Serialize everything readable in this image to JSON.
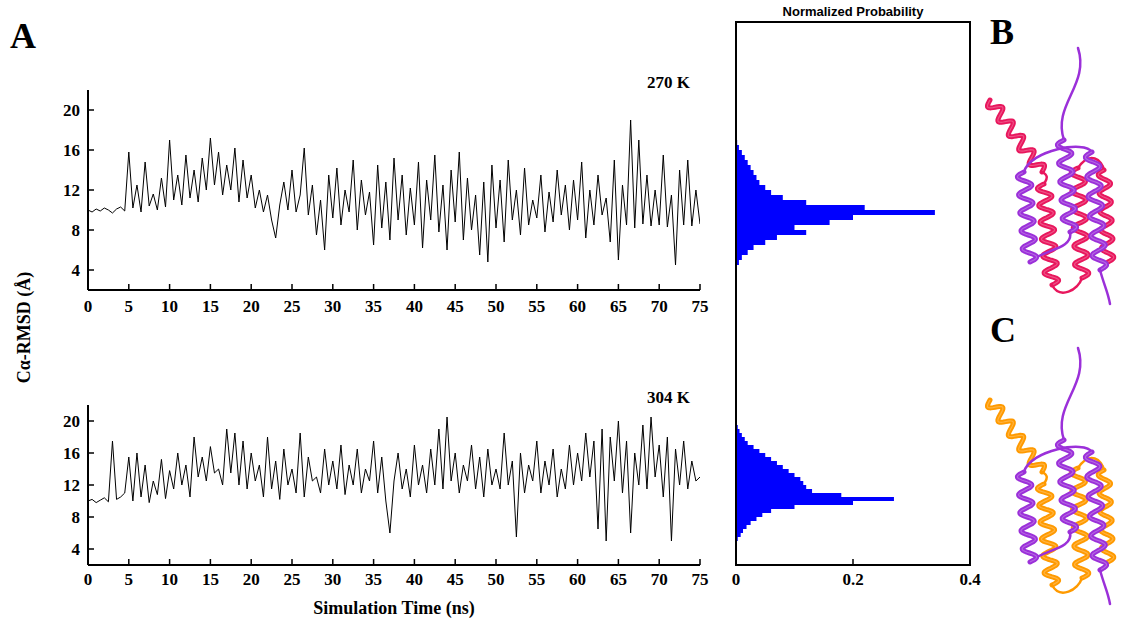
{
  "figure": {
    "panel_letters": [
      "A",
      "B",
      "C"
    ],
    "y_axis_title": "Cα-RMSD (Å)",
    "x_axis_title": "Simulation Time (ns)",
    "histogram_title": "Normalized Probability"
  },
  "chart_data": [
    {
      "type": "line",
      "title": "270 K",
      "color": "#000000",
      "x": [
        0,
        0.5,
        1,
        1.5,
        2,
        2.5,
        3,
        3.5,
        4,
        4.5,
        5,
        5.5,
        6,
        6.5,
        7,
        7.5,
        8,
        8.5,
        9,
        9.5,
        10,
        10.5,
        11,
        11.5,
        12,
        12.5,
        13,
        13.5,
        14,
        14.5,
        15,
        15.5,
        16,
        16.5,
        17,
        17.5,
        18,
        18.5,
        19,
        19.5,
        20,
        20.5,
        21,
        21.5,
        22,
        22.5,
        23,
        23.5,
        24,
        24.5,
        25,
        25.5,
        26,
        26.5,
        27,
        27.5,
        28,
        28.5,
        29,
        29.5,
        30,
        30.5,
        31,
        31.5,
        32,
        32.5,
        33,
        33.5,
        34,
        34.5,
        35,
        35.5,
        36,
        36.5,
        37,
        37.5,
        38,
        38.5,
        39,
        39.5,
        40,
        40.5,
        41,
        41.5,
        42,
        42.5,
        43,
        43.5,
        44,
        44.5,
        45,
        45.5,
        46,
        46.5,
        47,
        47.5,
        48,
        48.5,
        49,
        49.5,
        50,
        50.5,
        51,
        51.5,
        52,
        52.5,
        53,
        53.5,
        54,
        54.5,
        55,
        55.5,
        56,
        56.5,
        57,
        57.5,
        58,
        58.5,
        59,
        59.5,
        60,
        60.5,
        61,
        61.5,
        62,
        62.5,
        63,
        63.5,
        64,
        64.5,
        65,
        65.5,
        66,
        66.5,
        67,
        67.5,
        68,
        68.5,
        69,
        69.5,
        70,
        70.5,
        71,
        71.5,
        72,
        72.5,
        73,
        73.5,
        74,
        74.5,
        75
      ],
      "values": [
        10.0,
        9.8,
        10.1,
        9.9,
        10.2,
        10.0,
        9.7,
        10.1,
        10.3,
        9.9,
        15.8,
        10.2,
        12.5,
        9.8,
        14.8,
        10.4,
        11.6,
        10.0,
        13.2,
        10.3,
        17.0,
        11.0,
        13.5,
        10.5,
        15.5,
        11.2,
        14.0,
        10.8,
        15.2,
        12.0,
        17.2,
        12.5,
        15.8,
        11.5,
        14.5,
        12.0,
        16.2,
        10.8,
        15.0,
        11.2,
        13.5,
        10.2,
        12.0,
        9.8,
        11.5,
        9.0,
        7.2,
        10.5,
        12.8,
        10.0,
        14.0,
        9.8,
        11.5,
        16.2,
        9.5,
        12.5,
        7.5,
        11.0,
        6.0,
        13.5,
        9.2,
        14.2,
        8.5,
        12.0,
        9.8,
        15.0,
        8.0,
        13.0,
        9.5,
        11.8,
        6.5,
        14.5,
        8.2,
        12.8,
        7.0,
        15.2,
        9.0,
        13.5,
        7.5,
        12.2,
        8.5,
        14.8,
        6.2,
        13.0,
        9.0,
        15.5,
        7.8,
        12.5,
        6.0,
        14.0,
        8.8,
        15.8,
        7.0,
        13.2,
        8.0,
        11.5,
        5.5,
        12.8,
        4.8,
        14.5,
        8.2,
        13.0,
        6.8,
        15.0,
        9.0,
        12.0,
        7.5,
        14.2,
        8.5,
        11.0,
        9.2,
        13.5,
        7.8,
        11.8,
        8.8,
        14.0,
        9.5,
        12.5,
        8.0,
        13.0,
        9.0,
        14.8,
        7.2,
        12.0,
        8.5,
        13.5,
        9.5,
        11.2,
        6.8,
        15.0,
        5.0,
        12.5,
        8.5,
        19.0,
        8.2,
        17.0,
        8.6,
        13.5,
        8.4,
        12.0,
        8.5,
        15.5,
        8.3,
        11.5,
        4.5,
        14.0,
        8.5,
        15.0,
        8.4,
        12.0,
        8.6
      ],
      "xlim": [
        0,
        75
      ],
      "xticks": [
        0,
        5,
        10,
        15,
        20,
        25,
        30,
        35,
        40,
        45,
        50,
        55,
        60,
        65,
        70,
        75
      ],
      "ylim": [
        2,
        22
      ],
      "yticks": [
        4,
        8,
        12,
        16,
        20
      ]
    },
    {
      "type": "histogram",
      "orientation": "horizontal",
      "color": "#0000ff",
      "bins": [
        4,
        4.5,
        5,
        5.5,
        6,
        6.5,
        7,
        7.5,
        8,
        8.5,
        9,
        9.5,
        10,
        10.5,
        11,
        11.5,
        12,
        12.5,
        13,
        13.5,
        14,
        14.5,
        15,
        15.5,
        16,
        16.5,
        17,
        17.5,
        18,
        18.5,
        19,
        19.5,
        20
      ],
      "values": [
        0,
        0.005,
        0.01,
        0.02,
        0.03,
        0.05,
        0.07,
        0.12,
        0.1,
        0.16,
        0.2,
        0.34,
        0.22,
        0.12,
        0.08,
        0.06,
        0.05,
        0.04,
        0.035,
        0.03,
        0.025,
        0.02,
        0.015,
        0.01,
        0.005,
        0.002,
        0,
        0,
        0,
        0,
        0,
        0
      ],
      "xlim": [
        0,
        0.4
      ],
      "ylim": [
        2,
        22
      ],
      "tick_labels": false
    },
    {
      "type": "line",
      "title": "304 K",
      "color": "#000000",
      "x": [
        0,
        0.5,
        1,
        1.5,
        2,
        2.5,
        3,
        3.5,
        4,
        4.5,
        5,
        5.5,
        6,
        6.5,
        7,
        7.5,
        8,
        8.5,
        9,
        9.5,
        10,
        10.5,
        11,
        11.5,
        12,
        12.5,
        13,
        13.5,
        14,
        14.5,
        15,
        15.5,
        16,
        16.5,
        17,
        17.5,
        18,
        18.5,
        19,
        19.5,
        20,
        20.5,
        21,
        21.5,
        22,
        22.5,
        23,
        23.5,
        24,
        24.5,
        25,
        25.5,
        26,
        26.5,
        27,
        27.5,
        28,
        28.5,
        29,
        29.5,
        30,
        30.5,
        31,
        31.5,
        32,
        32.5,
        33,
        33.5,
        34,
        34.5,
        35,
        35.5,
        36,
        36.5,
        37,
        37.5,
        38,
        38.5,
        39,
        39.5,
        40,
        40.5,
        41,
        41.5,
        42,
        42.5,
        43,
        43.5,
        44,
        44.5,
        45,
        45.5,
        46,
        46.5,
        47,
        47.5,
        48,
        48.5,
        49,
        49.5,
        50,
        50.5,
        51,
        51.5,
        52,
        52.5,
        53,
        53.5,
        54,
        54.5,
        55,
        55.5,
        56,
        56.5,
        57,
        57.5,
        58,
        58.5,
        59,
        59.5,
        60,
        60.5,
        61,
        61.5,
        62,
        62.5,
        63,
        63.5,
        64,
        64.5,
        65,
        65.5,
        66,
        66.5,
        67,
        67.5,
        68,
        68.5,
        69,
        69.5,
        70,
        70.5,
        71,
        71.5,
        72,
        72.5,
        73,
        73.5,
        74,
        74.5,
        75
      ],
      "values": [
        10.0,
        10.2,
        9.8,
        10.1,
        10.4,
        9.9,
        17.5,
        10.2,
        10.5,
        11.0,
        15.5,
        10.0,
        16.0,
        10.5,
        14.5,
        9.8,
        12.5,
        10.8,
        15.2,
        10.3,
        13.8,
        11.5,
        16.0,
        12.0,
        14.5,
        10.5,
        18.0,
        13.0,
        15.5,
        12.5,
        16.8,
        13.5,
        14.0,
        12.0,
        19.0,
        13.5,
        18.5,
        12.0,
        17.5,
        11.5,
        16.0,
        12.5,
        14.5,
        10.5,
        18.0,
        11.5,
        15.0,
        10.2,
        16.5,
        12.0,
        14.0,
        11.0,
        18.5,
        10.5,
        15.5,
        12.5,
        13.0,
        11.0,
        16.5,
        12.0,
        15.0,
        11.5,
        17.0,
        10.8,
        14.5,
        12.0,
        16.5,
        11.0,
        14.0,
        12.5,
        17.5,
        11.0,
        15.5,
        10.0,
        6.0,
        12.5,
        16.0,
        11.5,
        14.0,
        10.5,
        17.0,
        12.0,
        14.5,
        11.0,
        16.5,
        12.0,
        19.0,
        11.5,
        20.5,
        12.5,
        16.0,
        11.0,
        14.5,
        12.5,
        17.0,
        11.5,
        15.5,
        10.5,
        16.5,
        12.0,
        14.0,
        11.5,
        18.5,
        12.0,
        15.0,
        5.5,
        16.0,
        11.0,
        14.5,
        12.5,
        17.5,
        11.0,
        15.0,
        12.0,
        16.5,
        10.5,
        14.0,
        11.5,
        17.0,
        12.0,
        16.0,
        12.5,
        18.5,
        13.0,
        17.5,
        6.5,
        19.0,
        5.0,
        18.0,
        12.5,
        20.0,
        11.0,
        17.5,
        6.0,
        16.0,
        12.0,
        19.5,
        11.5,
        20.5,
        13.0,
        17.0,
        10.5,
        18.0,
        5.0,
        16.5,
        12.0,
        17.5,
        11.5,
        15.0,
        12.5,
        13.0
      ],
      "xlim": [
        0,
        75
      ],
      "xticks": [
        0,
        5,
        10,
        15,
        20,
        25,
        30,
        35,
        40,
        45,
        50,
        55,
        60,
        65,
        70,
        75
      ],
      "ylim": [
        2,
        22
      ],
      "yticks": [
        4,
        8,
        12,
        16,
        20
      ]
    },
    {
      "type": "histogram",
      "orientation": "horizontal",
      "color": "#0000ff",
      "bins": [
        4,
        4.5,
        5,
        5.5,
        6,
        6.5,
        7,
        7.5,
        8,
        8.5,
        9,
        9.5,
        10,
        10.5,
        11,
        11.5,
        12,
        12.5,
        13,
        13.5,
        14,
        14.5,
        15,
        15.5,
        16,
        16.5,
        17,
        17.5,
        18,
        18.5,
        19,
        19.5,
        20
      ],
      "values": [
        0,
        0,
        0.003,
        0.008,
        0.012,
        0.018,
        0.025,
        0.035,
        0.045,
        0.06,
        0.1,
        0.2,
        0.27,
        0.18,
        0.13,
        0.12,
        0.115,
        0.11,
        0.1,
        0.09,
        0.08,
        0.07,
        0.06,
        0.05,
        0.04,
        0.03,
        0.02,
        0.015,
        0.01,
        0.006,
        0.003,
        0.001
      ],
      "xlim": [
        0,
        0.4
      ],
      "xticks": [
        0,
        0.2,
        0.4
      ],
      "ylim": [
        2,
        22
      ],
      "tick_labels": "x"
    }
  ]
}
